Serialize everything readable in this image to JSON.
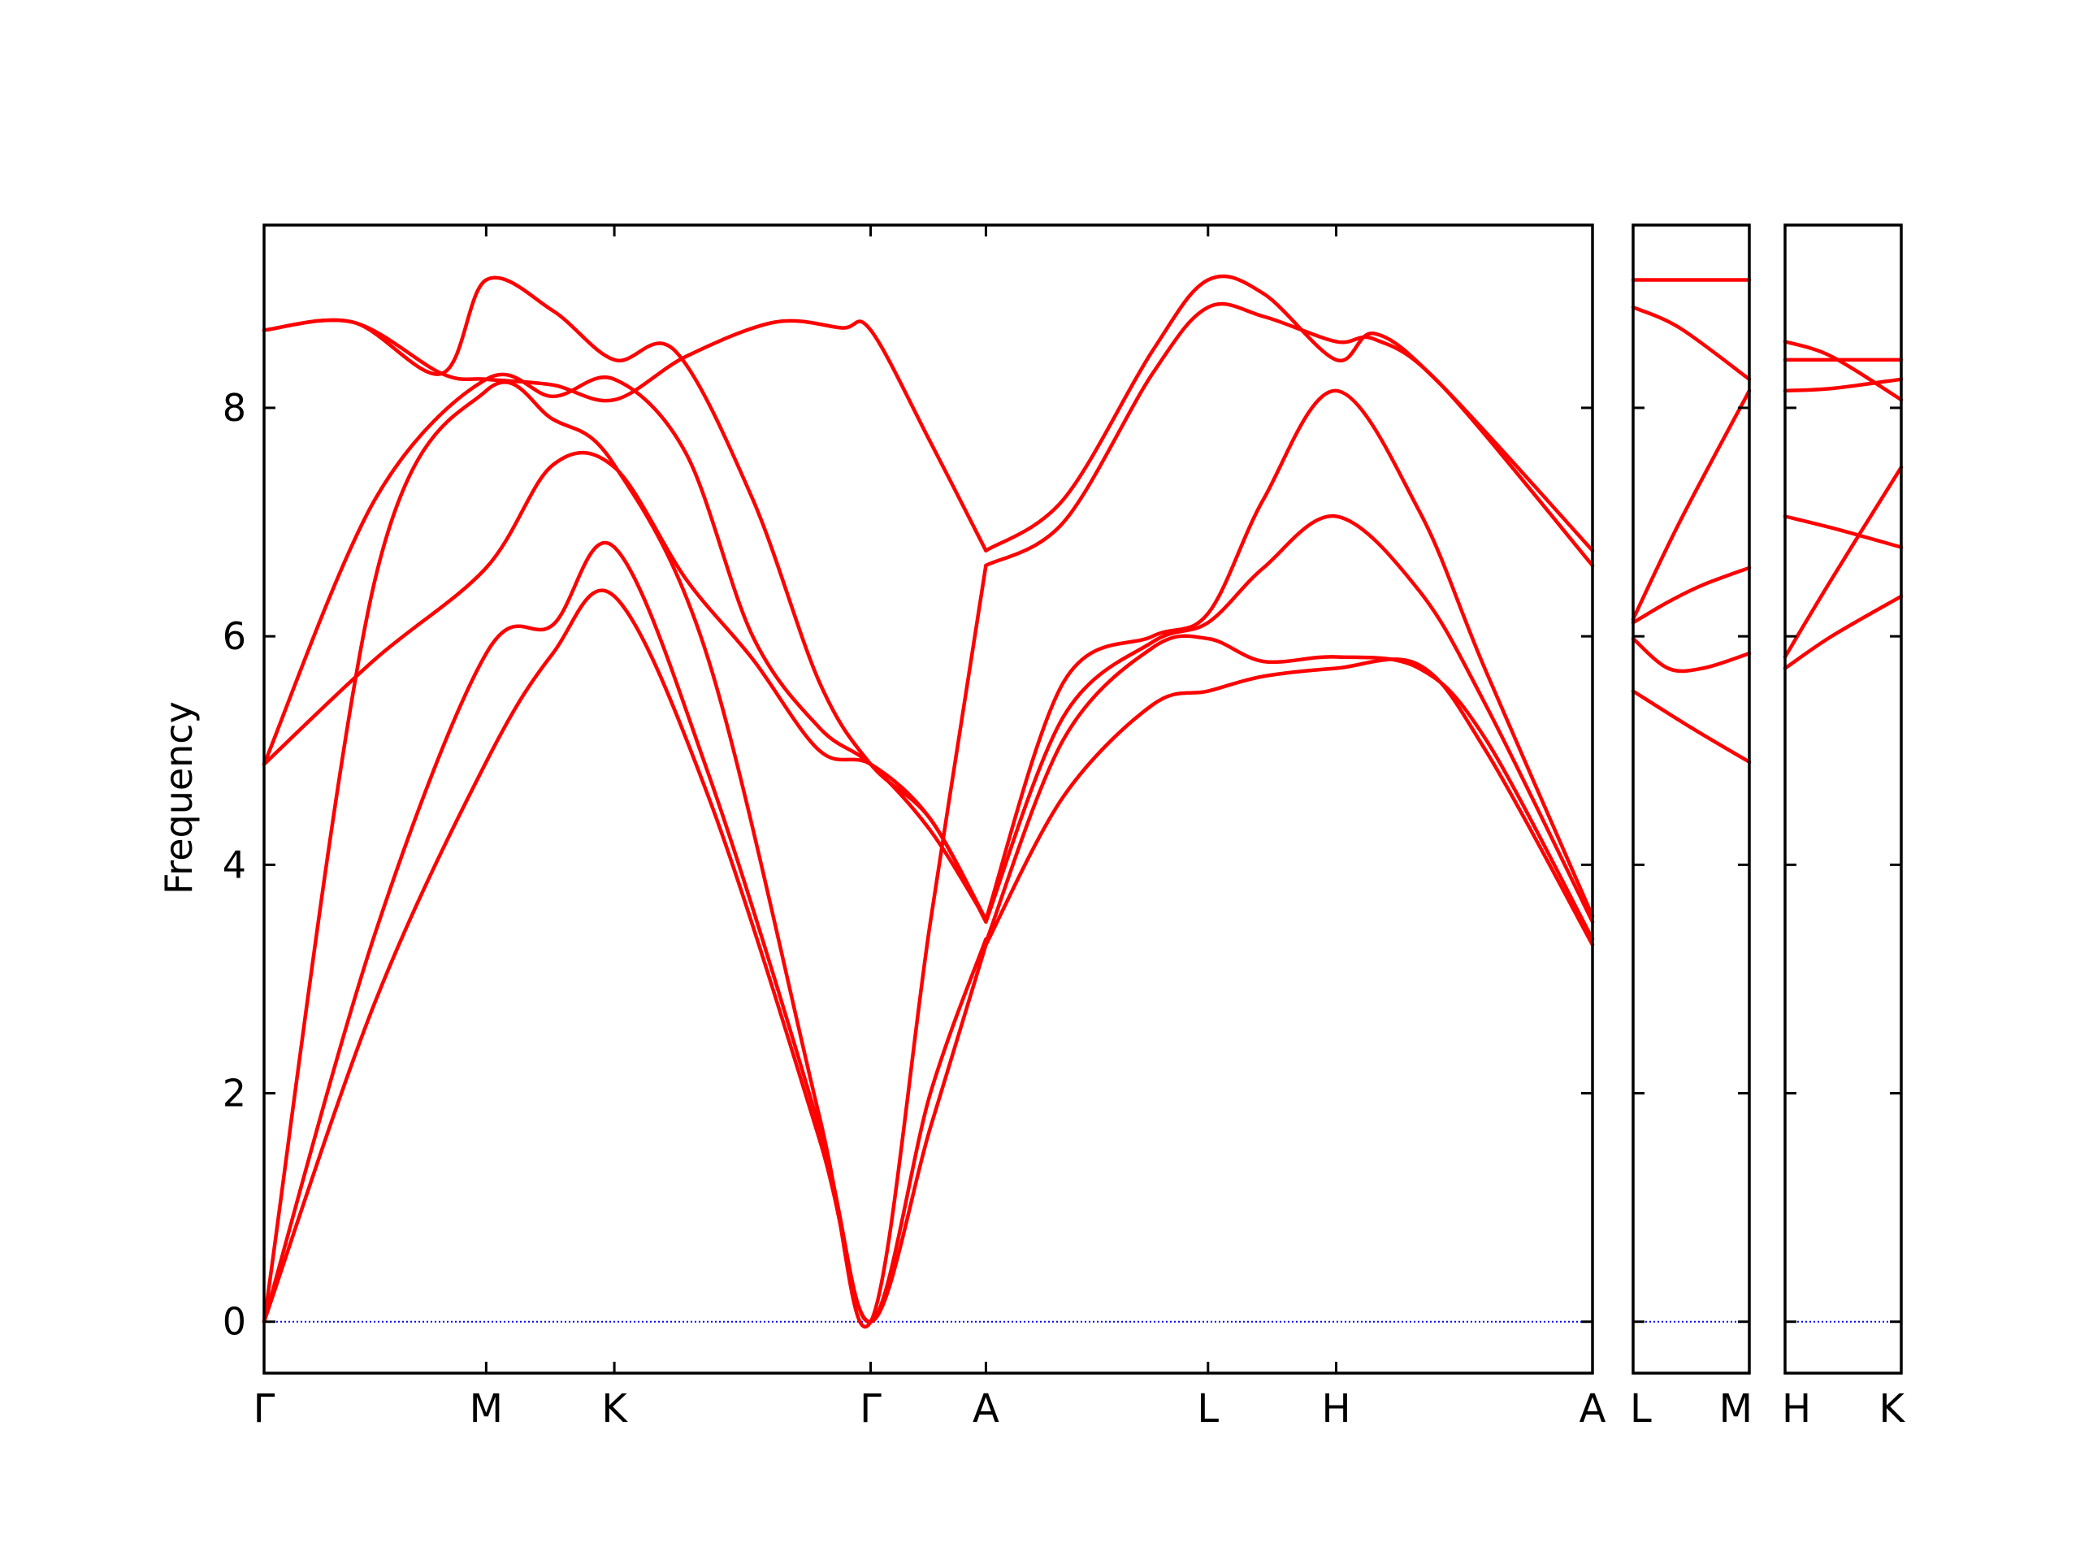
{
  "chart_data": {
    "type": "line",
    "title": "",
    "ylabel": "Frequency",
    "xlabel": "",
    "ylim": [
      -0.45,
      9.6
    ],
    "grid": false,
    "legend": "none",
    "y_ticks": [
      0,
      2,
      4,
      6,
      8
    ],
    "y_tick_labels": [
      "0",
      "2",
      "4",
      "6",
      "8"
    ],
    "colors": {
      "bands": "#ff0000",
      "zero_line": "#0000ff",
      "axes": "#000000"
    },
    "panels": [
      {
        "id": "main",
        "path_labels": [
          "Γ",
          "M",
          "K",
          "Γ",
          "A",
          "L",
          "H",
          "A"
        ],
        "path_positions": [
          0,
          1,
          1.577,
          2.731,
          3.25,
          4.25,
          4.827,
          5.981
        ],
        "x_range": [
          0,
          5.981
        ],
        "series": [
          {
            "x": [
              0,
              0.5,
              1,
              1.3,
              1.577,
              2.0,
              2.5,
              2.731,
              3.0,
              3.25
            ],
            "y": [
              0,
              2.8,
              4.9,
              5.85,
              6.35,
              4.6,
              1.6,
              0,
              1.7,
              3.3
            ]
          },
          {
            "x": [
              0,
              0.5,
              1,
              1.3,
              1.577,
              2.0,
              2.5,
              2.731,
              3.0,
              3.25
            ],
            "y": [
              0,
              3.4,
              5.85,
              6.1,
              6.78,
              4.8,
              1.7,
              0,
              2.0,
              3.35
            ]
          },
          {
            "x": [
              0,
              0.5,
              1,
              1.3,
              1.577,
              2.0,
              2.5,
              2.731,
              3.0,
              3.25
            ],
            "y": [
              0,
              6.5,
              8.15,
              7.9,
              7.5,
              5.8,
              1.8,
              0,
              3.5,
              6.62
            ]
          },
          {
            "x": [
              0,
              0.5,
              1,
              1.3,
              1.577,
              1.9,
              2.2,
              2.5,
              2.731,
              3.0,
              3.25
            ],
            "y": [
              4.88,
              5.8,
              6.6,
              7.5,
              7.48,
              6.5,
              5.8,
              5.0,
              4.88,
              4.4,
              3.5
            ]
          },
          {
            "x": [
              0,
              0.5,
              1,
              1.3,
              1.577,
              1.9,
              2.2,
              2.5,
              2.731,
              3.0,
              3.25
            ],
            "y": [
              4.88,
              7.2,
              8.25,
              8.1,
              8.25,
              7.6,
              6.0,
              5.2,
              4.88,
              4.3,
              3.52
            ]
          },
          {
            "x": [
              0,
              0.4,
              0.8,
              1,
              1.3,
              1.577,
              1.85,
              2.2,
              2.5,
              2.731,
              3.0,
              3.25
            ],
            "y": [
              8.68,
              8.75,
              8.3,
              9.12,
              8.85,
              8.42,
              8.5,
              7.2,
              5.6,
              4.88,
              4.4,
              3.52
            ]
          },
          {
            "x": [
              0,
              0.4,
              0.8,
              1,
              1.3,
              1.577,
              1.9,
              2.3,
              2.6,
              2.731,
              3.0,
              3.25
            ],
            "y": [
              8.68,
              8.75,
              8.3,
              8.25,
              8.2,
              8.07,
              8.45,
              8.75,
              8.7,
              8.68,
              7.7,
              6.75
            ]
          },
          {
            "x": [
              3.25,
              3.6,
              4.0,
              4.25,
              4.5,
              4.827,
              5.2,
              5.5,
              5.981
            ],
            "y": [
              3.3,
              4.6,
              5.4,
              5.52,
              5.65,
              5.72,
              5.75,
              5.0,
              3.3
            ]
          },
          {
            "x": [
              3.25,
              3.6,
              4.0,
              4.25,
              4.5,
              4.827,
              5.2,
              5.5,
              5.981
            ],
            "y": [
              3.32,
              5.1,
              5.9,
              5.98,
              5.78,
              5.82,
              5.72,
              5.1,
              3.35
            ]
          },
          {
            "x": [
              3.25,
              3.6,
              4.0,
              4.25,
              4.5,
              4.827,
              5.2,
              5.5,
              5.981
            ],
            "y": [
              3.5,
              5.3,
              5.95,
              6.12,
              6.6,
              7.05,
              6.4,
              5.4,
              3.5
            ]
          },
          {
            "x": [
              3.25,
              3.6,
              4.0,
              4.25,
              4.5,
              4.827,
              5.2,
              5.5,
              5.981
            ],
            "y": [
              3.52,
              5.6,
              6.0,
              6.2,
              7.2,
              8.15,
              7.1,
              5.7,
              3.55
            ]
          },
          {
            "x": [
              3.25,
              3.6,
              4.0,
              4.25,
              4.5,
              4.827,
              5.0,
              5.3,
              5.981
            ],
            "y": [
              6.62,
              7.0,
              8.3,
              8.88,
              8.8,
              8.58,
              8.6,
              8.2,
              6.62
            ]
          },
          {
            "x": [
              3.25,
              3.6,
              4.0,
              4.25,
              4.5,
              4.827,
              5.0,
              5.3,
              5.981
            ],
            "y": [
              6.75,
              7.2,
              8.5,
              9.12,
              9.0,
              8.42,
              8.65,
              8.2,
              6.75
            ]
          }
        ]
      },
      {
        "id": "L-M",
        "path_labels": [
          "L",
          "M"
        ],
        "path_positions": [
          0,
          1
        ],
        "x_range": [
          0,
          1
        ],
        "series": [
          {
            "x": [
              0,
              0.5,
              1
            ],
            "y": [
              5.52,
              5.2,
              4.9
            ]
          },
          {
            "x": [
              0,
              0.3,
              0.6,
              1
            ],
            "y": [
              5.98,
              5.72,
              5.72,
              5.85
            ]
          },
          {
            "x": [
              0,
              0.3,
              0.6,
              1
            ],
            "y": [
              6.12,
              6.3,
              6.45,
              6.6
            ]
          },
          {
            "x": [
              0,
              0.4,
              1
            ],
            "y": [
              6.15,
              7.0,
              8.15
            ]
          },
          {
            "x": [
              0,
              0.4,
              1
            ],
            "y": [
              8.88,
              8.7,
              8.25
            ]
          },
          {
            "x": [
              0,
              1
            ],
            "y": [
              9.12,
              9.12
            ]
          }
        ]
      },
      {
        "id": "H-K",
        "path_labels": [
          "H",
          "K"
        ],
        "path_positions": [
          0,
          1
        ],
        "x_range": [
          0,
          1
        ],
        "series": [
          {
            "x": [
              0,
              0.4,
              1
            ],
            "y": [
              5.72,
              6.0,
              6.35
            ]
          },
          {
            "x": [
              0,
              0.4,
              1
            ],
            "y": [
              5.82,
              6.5,
              7.48
            ]
          },
          {
            "x": [
              0,
              0.4,
              1
            ],
            "y": [
              7.05,
              6.95,
              6.78
            ]
          },
          {
            "x": [
              0,
              0.4,
              1
            ],
            "y": [
              8.15,
              8.17,
              8.25
            ]
          },
          {
            "x": [
              0,
              0.5,
              1
            ],
            "y": [
              8.42,
              8.42,
              8.42
            ]
          },
          {
            "x": [
              0,
              0.4,
              1
            ],
            "y": [
              8.58,
              8.45,
              8.07
            ]
          }
        ]
      }
    ]
  }
}
